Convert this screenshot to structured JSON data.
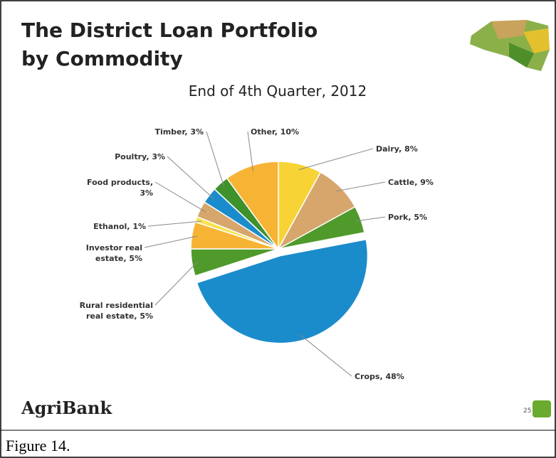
{
  "chart_data": {
    "type": "pie",
    "title": "The District Loan Portfolio\nby Commodity",
    "subtitle": "End of 4th Quarter, 2012",
    "values": [
      8,
      9,
      5,
      48,
      5,
      5,
      1,
      3,
      3,
      3,
      10
    ],
    "value_labels": [
      "Dairy, 8%",
      "Cattle, 9%",
      "Pork, 5%",
      "Crops, 48%",
      "Rural residential\nreal estate, 5%",
      "Investor  real\nestate, 5%",
      "Ethanol, 1%",
      "Food products,\n3%",
      "Poultry, 3%",
      "Timber, 3%",
      "Other, 10%"
    ],
    "colors": [
      "#f8d335",
      "#d6a66c",
      "#4f9a2b",
      "#1b8ccb",
      "#4f9a2b",
      "#f7b334",
      "#f8e24e",
      "#d6a66c",
      "#1b8ccb",
      "#3f912b",
      "#f7b334"
    ],
    "exploded": [
      3
    ]
  },
  "footer": {
    "logo": "AgriBank",
    "page": "25"
  },
  "caption": "Figure 14."
}
